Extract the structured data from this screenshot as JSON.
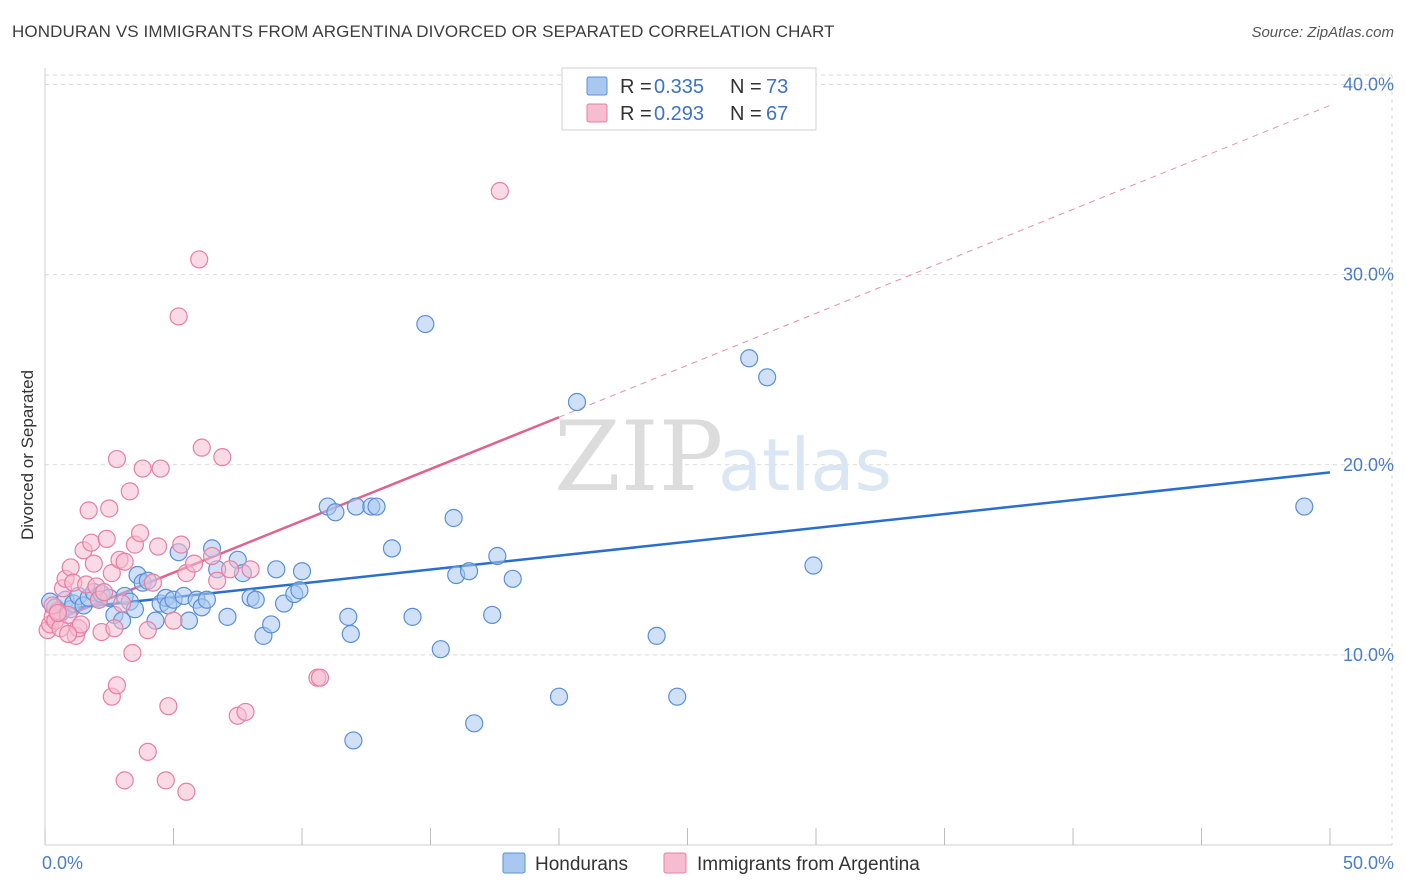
{
  "title": "HONDURAN VS IMMIGRANTS FROM ARGENTINA DIVORCED OR SEPARATED CORRELATION CHART",
  "source": "Source: ZipAtlas.com",
  "watermark": {
    "zip": "ZIP",
    "atlas": "atlas"
  },
  "colors": {
    "blue_fill": "#a9c8f0",
    "blue_stroke": "#5a8fd8",
    "blue_line": "#2a6fcf",
    "pink_fill": "#f6bcd0",
    "pink_stroke": "#e77fa3",
    "pink_line": "#e0628f",
    "grid": "#d9d9d9",
    "tick_text": "#4a7cc9"
  },
  "legend": {
    "blue": {
      "r_label": "R = ",
      "r_value": "0.335",
      "n_label": "N = ",
      "n_value": "73"
    },
    "pink": {
      "r_label": "R = ",
      "r_value": "0.293",
      "n_label": "N = ",
      "n_value": "67"
    }
  },
  "chart_data": {
    "type": "scatter",
    "title": "HONDURAN VS IMMIGRANTS FROM ARGENTINA DIVORCED OR SEPARATED CORRELATION CHART",
    "xlabel": "",
    "ylabel": "Divorced or Separated",
    "xlim": [
      0,
      50
    ],
    "ylim": [
      0,
      40.5
    ],
    "x_tick_labels": [
      "0.0%",
      "50.0%"
    ],
    "y_ticks": [
      10,
      20,
      30,
      40
    ],
    "y_tick_labels": [
      "10.0%",
      "20.0%",
      "30.0%",
      "40.0%"
    ],
    "grid": true,
    "legend_position": "top-center",
    "series": [
      {
        "name": "Hondurans",
        "color": "#a9c8f0",
        "trend": {
          "x0": 0,
          "y0": 12.3,
          "x1": 50,
          "y1": 19.6
        },
        "points": [
          [
            0.2,
            12.8
          ],
          [
            0.4,
            12.5
          ],
          [
            0.6,
            12.2
          ],
          [
            0.8,
            12.9
          ],
          [
            1.0,
            12.4
          ],
          [
            1.1,
            12.7
          ],
          [
            1.3,
            13.1
          ],
          [
            1.5,
            12.6
          ],
          [
            1.7,
            13.0
          ],
          [
            1.9,
            13.3
          ],
          [
            2.1,
            12.9
          ],
          [
            2.2,
            13.2
          ],
          [
            2.5,
            13.0
          ],
          [
            2.7,
            12.1
          ],
          [
            3.0,
            11.8
          ],
          [
            3.1,
            13.1
          ],
          [
            3.3,
            12.8
          ],
          [
            3.5,
            12.4
          ],
          [
            3.6,
            14.2
          ],
          [
            3.8,
            13.8
          ],
          [
            4.0,
            13.9
          ],
          [
            4.3,
            11.8
          ],
          [
            4.5,
            12.7
          ],
          [
            4.7,
            13.0
          ],
          [
            4.8,
            12.6
          ],
          [
            5.0,
            12.9
          ],
          [
            5.2,
            15.4
          ],
          [
            5.4,
            13.1
          ],
          [
            5.6,
            11.8
          ],
          [
            5.9,
            12.9
          ],
          [
            6.1,
            12.5
          ],
          [
            6.3,
            12.9
          ],
          [
            6.5,
            15.6
          ],
          [
            6.7,
            14.5
          ],
          [
            7.1,
            12.0
          ],
          [
            7.5,
            15.0
          ],
          [
            7.7,
            14.3
          ],
          [
            8.0,
            13.0
          ],
          [
            8.2,
            12.9
          ],
          [
            8.5,
            11.0
          ],
          [
            8.8,
            11.6
          ],
          [
            9.0,
            14.5
          ],
          [
            9.3,
            12.7
          ],
          [
            9.7,
            13.2
          ],
          [
            9.9,
            13.4
          ],
          [
            10.0,
            14.4
          ],
          [
            11.0,
            17.8
          ],
          [
            11.3,
            17.5
          ],
          [
            11.8,
            12.0
          ],
          [
            11.9,
            11.1
          ],
          [
            12.1,
            17.8
          ],
          [
            12.7,
            17.8
          ],
          [
            12.9,
            17.8
          ],
          [
            13.5,
            15.6
          ],
          [
            14.3,
            12.0
          ],
          [
            14.8,
            27.4
          ],
          [
            15.4,
            10.3
          ],
          [
            15.9,
            17.2
          ],
          [
            16.0,
            14.2
          ],
          [
            16.5,
            14.4
          ],
          [
            16.7,
            6.4
          ],
          [
            17.4,
            12.1
          ],
          [
            17.6,
            15.2
          ],
          [
            18.2,
            14.0
          ],
          [
            20.0,
            7.8
          ],
          [
            20.7,
            23.3
          ],
          [
            23.8,
            11.0
          ],
          [
            24.6,
            7.8
          ],
          [
            27.4,
            25.6
          ],
          [
            28.1,
            24.6
          ],
          [
            29.9,
            14.7
          ],
          [
            49.0,
            17.8
          ],
          [
            12.0,
            5.5
          ]
        ]
      },
      {
        "name": "Immigrants from Argentina",
        "color": "#f6bcd0",
        "trend": {
          "x0": 0,
          "y0": 11.6,
          "x1": 20,
          "y1": 22.5
        },
        "trend_dashed": {
          "x0": 20,
          "y0": 22.5,
          "x1": 50,
          "y1": 38.9
        },
        "points": [
          [
            0.1,
            11.3
          ],
          [
            0.2,
            11.6
          ],
          [
            0.3,
            12.0
          ],
          [
            0.4,
            11.8
          ],
          [
            0.5,
            12.3
          ],
          [
            0.6,
            11.4
          ],
          [
            0.7,
            13.5
          ],
          [
            0.8,
            14.0
          ],
          [
            0.9,
            12.1
          ],
          [
            1.0,
            14.6
          ],
          [
            1.1,
            13.8
          ],
          [
            1.2,
            11.0
          ],
          [
            1.3,
            11.4
          ],
          [
            1.5,
            15.5
          ],
          [
            1.6,
            13.7
          ],
          [
            1.7,
            17.6
          ],
          [
            1.8,
            15.9
          ],
          [
            1.9,
            14.8
          ],
          [
            2.0,
            13.6
          ],
          [
            2.1,
            12.9
          ],
          [
            2.2,
            11.2
          ],
          [
            2.3,
            13.3
          ],
          [
            2.4,
            16.1
          ],
          [
            2.5,
            17.7
          ],
          [
            2.6,
            14.3
          ],
          [
            2.7,
            11.4
          ],
          [
            2.8,
            20.3
          ],
          [
            2.9,
            15.0
          ],
          [
            3.0,
            12.7
          ],
          [
            3.1,
            14.9
          ],
          [
            3.3,
            18.6
          ],
          [
            3.4,
            10.1
          ],
          [
            3.5,
            15.8
          ],
          [
            3.7,
            16.4
          ],
          [
            3.8,
            19.8
          ],
          [
            4.0,
            11.3
          ],
          [
            4.2,
            13.8
          ],
          [
            4.4,
            15.7
          ],
          [
            4.5,
            19.8
          ],
          [
            4.8,
            7.3
          ],
          [
            5.0,
            11.8
          ],
          [
            5.2,
            27.8
          ],
          [
            5.3,
            15.8
          ],
          [
            5.5,
            14.3
          ],
          [
            5.8,
            14.8
          ],
          [
            6.0,
            30.8
          ],
          [
            6.1,
            20.9
          ],
          [
            6.5,
            15.2
          ],
          [
            6.7,
            13.9
          ],
          [
            6.9,
            20.4
          ],
          [
            7.2,
            14.5
          ],
          [
            7.5,
            6.8
          ],
          [
            7.8,
            7.0
          ],
          [
            8.0,
            14.5
          ],
          [
            10.6,
            8.8
          ],
          [
            10.7,
            8.8
          ],
          [
            17.7,
            34.4
          ],
          [
            2.6,
            7.8
          ],
          [
            2.8,
            8.4
          ],
          [
            3.1,
            3.4
          ],
          [
            4.0,
            4.9
          ],
          [
            4.7,
            3.4
          ],
          [
            5.5,
            2.8
          ],
          [
            1.4,
            11.6
          ],
          [
            0.3,
            12.6
          ],
          [
            0.5,
            12.2
          ],
          [
            0.9,
            11.1
          ]
        ]
      }
    ]
  }
}
